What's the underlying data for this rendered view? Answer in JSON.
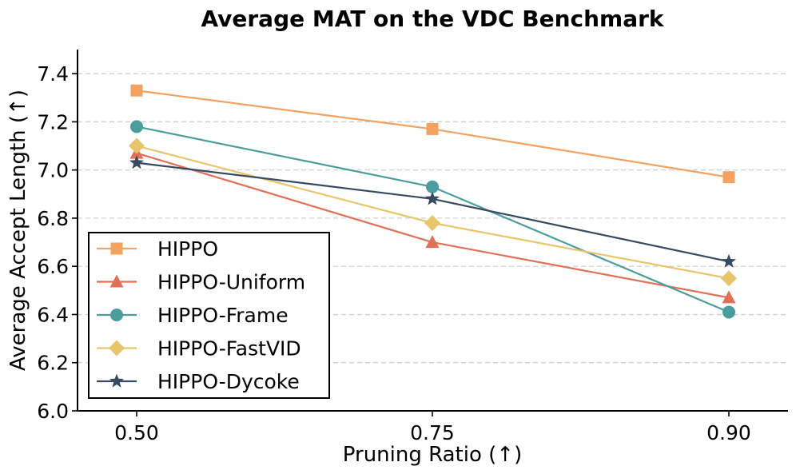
{
  "chart_data": {
    "type": "line",
    "title": "Average MAT on the VDC Benchmark",
    "xlabel": "Pruning Ratio (↑)",
    "ylabel": "Average Accept Length (↑)",
    "categories": [
      "0.50",
      "0.75",
      "0.90"
    ],
    "ylim": [
      6.0,
      7.5
    ],
    "yticks": [
      "6.0",
      "6.2",
      "6.4",
      "6.6",
      "6.8",
      "7.0",
      "7.2",
      "7.4"
    ],
    "grid": "y-dashed",
    "legend_position": "bottom-left",
    "series": [
      {
        "name": "HIPPO",
        "marker": "square",
        "color": "#f4a261",
        "values": [
          7.33,
          7.17,
          6.97
        ]
      },
      {
        "name": "HIPPO-Uniform",
        "marker": "triangle",
        "color": "#e07058",
        "values": [
          7.07,
          6.7,
          6.47
        ]
      },
      {
        "name": "HIPPO-Frame",
        "marker": "circle",
        "color": "#4a9d9c",
        "values": [
          7.18,
          6.93,
          6.41
        ]
      },
      {
        "name": "HIPPO-FastVID",
        "marker": "diamond",
        "color": "#e8c46b",
        "values": [
          7.1,
          6.78,
          6.55
        ]
      },
      {
        "name": "HIPPO-Dycoke",
        "marker": "star",
        "color": "#364b61",
        "values": [
          7.03,
          6.88,
          6.62
        ]
      }
    ]
  }
}
